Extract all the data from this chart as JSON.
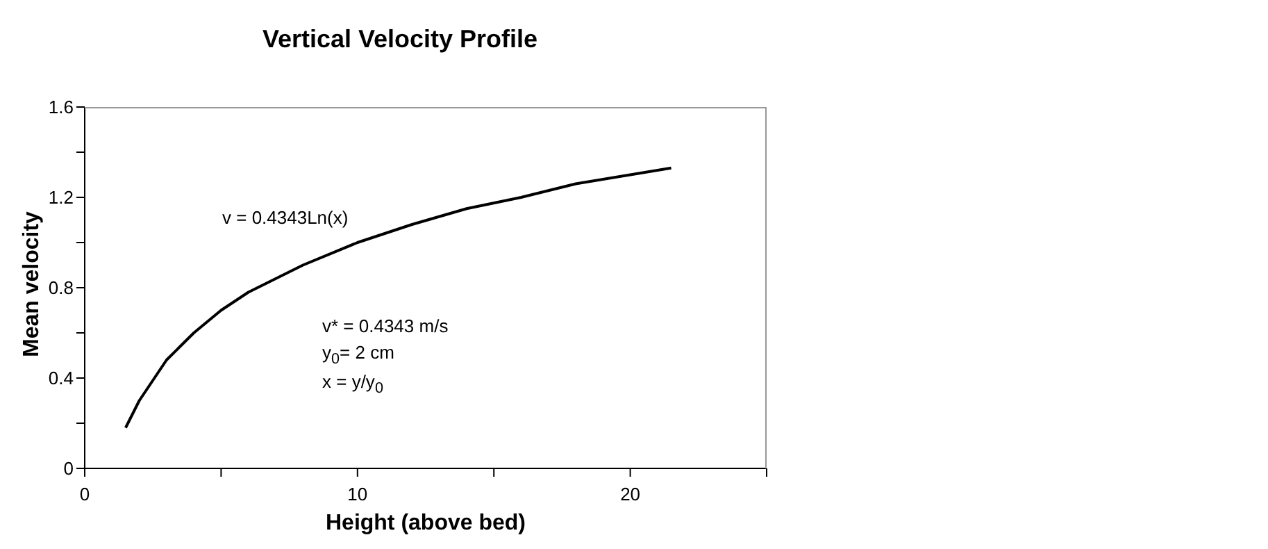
{
  "chart_data": {
    "type": "line",
    "title": "Vertical Velocity Profile",
    "xlabel": "Height (above bed)",
    "ylabel": "Mean velocity",
    "x": [
      1.5,
      2,
      3,
      4,
      5,
      6,
      8,
      10,
      12,
      14,
      16,
      18,
      20,
      21.5
    ],
    "series": [
      {
        "color": "#000000",
        "values": [
          0.18,
          0.3,
          0.48,
          0.6,
          0.7,
          0.78,
          0.9,
          1.0,
          1.08,
          1.15,
          1.2,
          1.26,
          1.3,
          1.33
        ]
      }
    ],
    "xlim": [
      0,
      25
    ],
    "xticks": [
      0,
      {
        "value": 5,
        "label": null
      },
      10,
      {
        "value": 15,
        "label": null
      },
      20,
      {
        "value": 25,
        "label": null
      }
    ],
    "ylim": [
      0,
      1.6
    ],
    "yticks": [
      0,
      {
        "value": 0.2,
        "label": null
      },
      0.4,
      {
        "value": 0.6,
        "label": null
      },
      0.8,
      {
        "value": 1.0,
        "label": null
      },
      1.2,
      {
        "value": 1.4,
        "label": null
      },
      1.6
    ],
    "annotations": [
      "v = 0.4343Ln(x)",
      "v* = 0.4343 m/s",
      "y$_{0}$= 2 cm",
      "x = y/y$_{0}$"
    ],
    "grid": false,
    "legend": false,
    "marker": "none",
    "line_style": "solid"
  }
}
